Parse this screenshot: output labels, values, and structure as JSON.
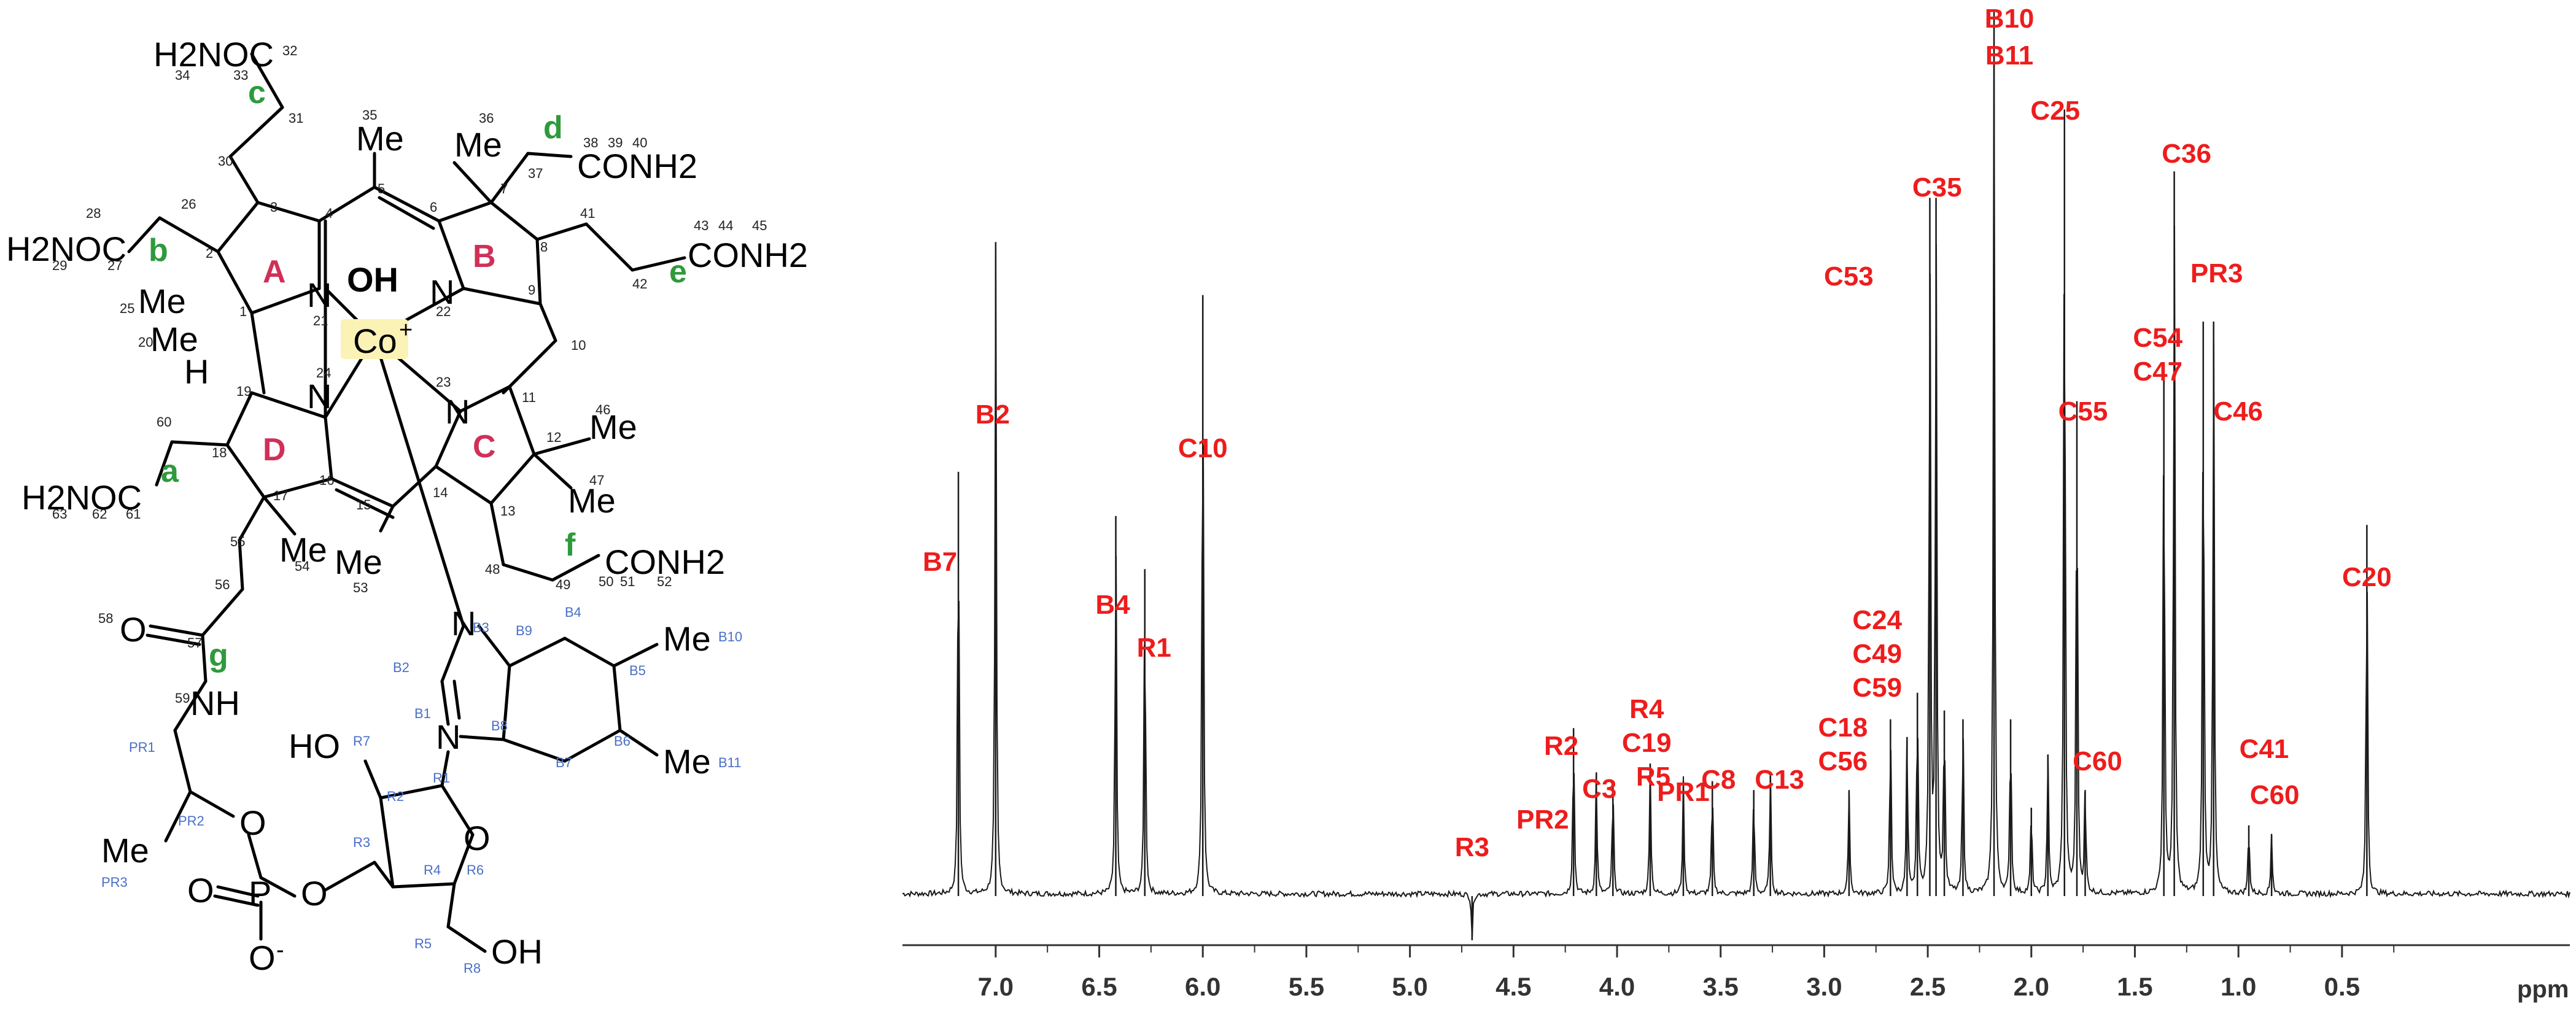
{
  "colors": {
    "bond": "#000000",
    "ring_label": "#d03058",
    "chain_label": "#2e9a3c",
    "small_number": "#222222",
    "blue_label": "#4a6fc8",
    "peak_label": "#ee1c1c",
    "cobalt_highlight": "#fbf2b6",
    "spectrum_line": "#1a1a1a"
  },
  "structure": {
    "ring_labels": [
      "A",
      "B",
      "C",
      "D"
    ],
    "chain_labels": [
      "a",
      "b",
      "c",
      "d",
      "e",
      "f",
      "g"
    ],
    "groups": {
      "c_amide": "H2NOC",
      "b_amide": "H2NOC",
      "a_amide": "H2NOC",
      "d_amide": "CONH2",
      "e_amide": "CONH2",
      "f_amide": "CONH2",
      "me5": "Me",
      "me7": "Me",
      "me2": "Me",
      "me1": "Me",
      "me12a": "Me",
      "me12b": "Me",
      "me17": "Me",
      "me15": "Me",
      "oh": "OH",
      "cobalt": "Co",
      "cobalt_charge": "+",
      "h19": "H",
      "n21": "N",
      "n22": "N",
      "n23": "N",
      "n24": "N",
      "o58": "O",
      "nh": "NH",
      "me_pr3": "Me",
      "phosphate_p": "P",
      "phosphate_o_top": "O",
      "phosphate_o_right": "O",
      "phosphate_o_double": "O",
      "phosphate_o_minus": "O",
      "phosphate_minus": "-",
      "ho_r7": "HO",
      "ring_o": "O",
      "oh_r8": "OH",
      "n_b3": "N",
      "n_b1": "N",
      "me_b10": "Me",
      "me_b11": "Me"
    },
    "numbers": {
      "n34": "34",
      "n33": "33",
      "n32": "32",
      "n31": "31",
      "n30": "30",
      "n3": "3",
      "n26": "26",
      "n28": "28",
      "n29": "29",
      "n27": "27",
      "n2": "2",
      "n25": "25",
      "n20": "20",
      "n1": "1",
      "n4": "4",
      "n5": "5",
      "n35": "35",
      "n6": "6",
      "n36": "36",
      "n7": "7",
      "n37": "37",
      "n38": "38",
      "n39": "39",
      "n40": "40",
      "n41": "41",
      "n8": "8",
      "n43": "43",
      "n44": "44",
      "n45": "45",
      "n42": "42",
      "n9": "9",
      "n10": "10",
      "n11": "11",
      "n46": "46",
      "n12": "12",
      "n47": "47",
      "n13": "13",
      "n14": "14",
      "n15": "15",
      "n16": "16",
      "n17": "17",
      "n18": "18",
      "n19": "19",
      "n21": "21",
      "n22": "22",
      "n23": "23",
      "n24": "24",
      "n60": "60",
      "n63": "63",
      "n62": "62",
      "n61": "61",
      "n55": "55",
      "n54": "54",
      "n53": "53",
      "n56": "56",
      "n48": "48",
      "n49": "49",
      "n50": "50",
      "n51": "51",
      "n52": "52",
      "n58": "58",
      "n57": "57",
      "n59": "59"
    },
    "blue_labels": {
      "b3": "B3",
      "b9": "B9",
      "b4": "B4",
      "b10": "B10",
      "b2": "B2",
      "b5": "B5",
      "b1": "B1",
      "b8": "B8",
      "b7": "B7",
      "b6": "B6",
      "b11": "B11",
      "r7": "R7",
      "r1": "R1",
      "r2": "R2",
      "r3": "R3",
      "r4": "R4",
      "r6": "R6",
      "r5": "R5",
      "r8": "R8",
      "pr1": "PR1",
      "pr2": "PR2",
      "pr3": "PR3"
    }
  },
  "chart_data": {
    "type": "line",
    "title": "",
    "xlabel": "ppm",
    "ylabel": "",
    "xlim": [
      7.45,
      -0.6
    ],
    "x_reversed": true,
    "xticks": [
      "7.0",
      "6.5",
      "6.0",
      "5.5",
      "5.0",
      "4.5",
      "4.0",
      "3.5",
      "3.0",
      "2.5",
      "2.0",
      "1.5",
      "1.0",
      "0.5"
    ],
    "xtick_values": [
      7.0,
      6.5,
      6.0,
      5.5,
      5.0,
      4.5,
      4.0,
      3.5,
      3.0,
      2.5,
      2.0,
      1.5,
      1.0,
      0.5
    ],
    "baseline": 0.05,
    "peaks": [
      {
        "ppm": 7.18,
        "h": 0.48
      },
      {
        "ppm": 7.0,
        "h": 0.74
      },
      {
        "ppm": 6.42,
        "h": 0.43
      },
      {
        "ppm": 6.28,
        "h": 0.37
      },
      {
        "ppm": 6.0,
        "h": 0.68
      },
      {
        "ppm": 4.7,
        "h": -0.05
      },
      {
        "ppm": 4.21,
        "h": 0.19
      },
      {
        "ppm": 4.1,
        "h": 0.14
      },
      {
        "ppm": 4.02,
        "h": 0.13
      },
      {
        "ppm": 3.84,
        "h": 0.15
      },
      {
        "ppm": 3.68,
        "h": 0.13
      },
      {
        "ppm": 3.54,
        "h": 0.13
      },
      {
        "ppm": 3.34,
        "h": 0.12
      },
      {
        "ppm": 3.26,
        "h": 0.14
      },
      {
        "ppm": 2.88,
        "h": 0.12
      },
      {
        "ppm": 2.68,
        "h": 0.2
      },
      {
        "ppm": 2.6,
        "h": 0.18
      },
      {
        "ppm": 2.55,
        "h": 0.23
      },
      {
        "ppm": 2.49,
        "h": 0.79
      },
      {
        "ppm": 2.46,
        "h": 0.79
      },
      {
        "ppm": 2.42,
        "h": 0.21
      },
      {
        "ppm": 2.33,
        "h": 0.2
      },
      {
        "ppm": 2.18,
        "h": 1.0
      },
      {
        "ppm": 2.1,
        "h": 0.2
      },
      {
        "ppm": 2.0,
        "h": 0.1
      },
      {
        "ppm": 1.92,
        "h": 0.16
      },
      {
        "ppm": 1.84,
        "h": 0.89
      },
      {
        "ppm": 1.78,
        "h": 0.56
      },
      {
        "ppm": 1.74,
        "h": 0.12
      },
      {
        "ppm": 1.36,
        "h": 0.6
      },
      {
        "ppm": 1.31,
        "h": 0.82
      },
      {
        "ppm": 1.17,
        "h": 0.65
      },
      {
        "ppm": 1.12,
        "h": 0.65
      },
      {
        "ppm": 0.95,
        "h": 0.08
      },
      {
        "ppm": 0.84,
        "h": 0.07
      },
      {
        "ppm": 0.38,
        "h": 0.42
      }
    ],
    "peak_labels": [
      {
        "text": "B7",
        "ppm": 7.18
      },
      {
        "text": "B2",
        "ppm": 7.0
      },
      {
        "text": "B4",
        "ppm": 6.42
      },
      {
        "text": "R1",
        "ppm": 6.28
      },
      {
        "text": "C10",
        "ppm": 6.0
      },
      {
        "text": "R3",
        "ppm": 4.7
      },
      {
        "text": "PR2",
        "ppm": 4.3
      },
      {
        "text": "R2",
        "ppm": 4.21
      },
      {
        "text": "C3",
        "ppm": 4.1
      },
      {
        "text": "R4",
        "ppm": 4.02
      },
      {
        "text": "C19",
        "ppm": 4.02
      },
      {
        "text": "R5",
        "ppm": 3.84
      },
      {
        "text": "PR1",
        "ppm": 3.68
      },
      {
        "text": "C8",
        "ppm": 3.54
      },
      {
        "text": "C13",
        "ppm": 3.26
      },
      {
        "text": "C18",
        "ppm": 2.88
      },
      {
        "text": "C56",
        "ppm": 2.88
      },
      {
        "text": "C24",
        "ppm": 2.67
      },
      {
        "text": "C49",
        "ppm": 2.67
      },
      {
        "text": "C59",
        "ppm": 2.67
      },
      {
        "text": "C53",
        "ppm": 2.6
      },
      {
        "text": "C35",
        "ppm": 2.47
      },
      {
        "text": "B10",
        "ppm": 2.18
      },
      {
        "text": "B11",
        "ppm": 2.18
      },
      {
        "text": "C25",
        "ppm": 1.84
      },
      {
        "text": "C55",
        "ppm": 1.78
      },
      {
        "text": "C60",
        "ppm": 1.74
      },
      {
        "text": "C36",
        "ppm": 1.31
      },
      {
        "text": "C54",
        "ppm": 1.36
      },
      {
        "text": "C47",
        "ppm": 1.36
      },
      {
        "text": "PR3",
        "ppm": 1.12
      },
      {
        "text": "C46",
        "ppm": 1.12
      },
      {
        "text": "C41",
        "ppm": 0.95
      },
      {
        "text": "C60",
        "ppm": 0.84
      },
      {
        "text": "C20",
        "ppm": 0.38
      }
    ],
    "grid": false
  }
}
